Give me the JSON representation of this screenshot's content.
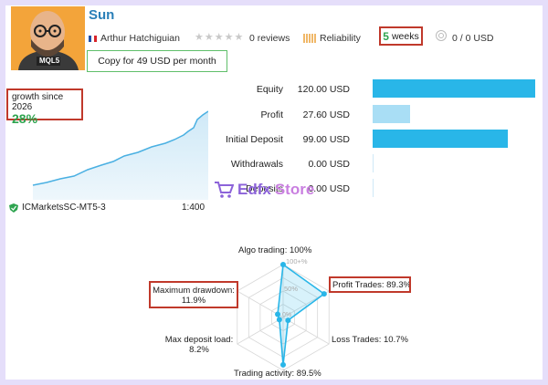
{
  "header": {
    "title": "Sun",
    "author": "Arthur Hatchiguian",
    "avatar_badge": "MQL5",
    "reviews": "0 reviews",
    "reliability_label": "Reliability",
    "weeks_number": "5",
    "weeks_label": "weeks",
    "subscribers": "0 / 0 USD",
    "copy_button": "Copy for 49 USD per month"
  },
  "growth": {
    "label": "growth since 2026",
    "value": "28%",
    "server": "ICMarketsSC-MT5-3",
    "leverage": "1:400"
  },
  "stats": [
    {
      "label": "Equity",
      "value": "120.00 USD",
      "fraction": 1.0,
      "color": "#29b6e8"
    },
    {
      "label": "Profit",
      "value": "27.60 USD",
      "fraction": 0.23,
      "color": "#a9def5"
    },
    {
      "label": "Initial Deposit",
      "value": "99.00 USD",
      "fraction": 0.83,
      "color": "#29b6e8"
    },
    {
      "label": "Withdrawals",
      "value": "0.00 USD",
      "fraction": 0.0,
      "color": "#29b6e8"
    },
    {
      "label": "Deposits",
      "value": "0.00 USD",
      "fraction": 0.0,
      "color": "#29b6e8"
    }
  ],
  "watermark": {
    "part1": "Edfx",
    "part2": "Store"
  },
  "radar": {
    "algo_trading": "Algo trading: 100%",
    "profit_trades": "Profit Trades: 89.3%",
    "loss_trades": "Loss Trades: 10.7%",
    "trading_activity": "Trading activity: 89.5%",
    "max_deposit_load_line1": "Max deposit load:",
    "max_deposit_load_line2": "8.2%",
    "max_drawdown_line1": "Maximum drawdown:",
    "max_drawdown_line2": "11.9%",
    "ring_100": "100+%",
    "ring_50": "50%",
    "ring_0": "0%",
    "values": {
      "algo": 1.0,
      "profit": 0.893,
      "loss": 0.107,
      "activity": 0.895,
      "deposit_load": 0.082,
      "drawdown": 0.119
    }
  },
  "colors": {
    "accent": "#29b6e8",
    "green": "#2ea44f",
    "title": "#2a7fb8",
    "highlight": "#c0392b"
  }
}
